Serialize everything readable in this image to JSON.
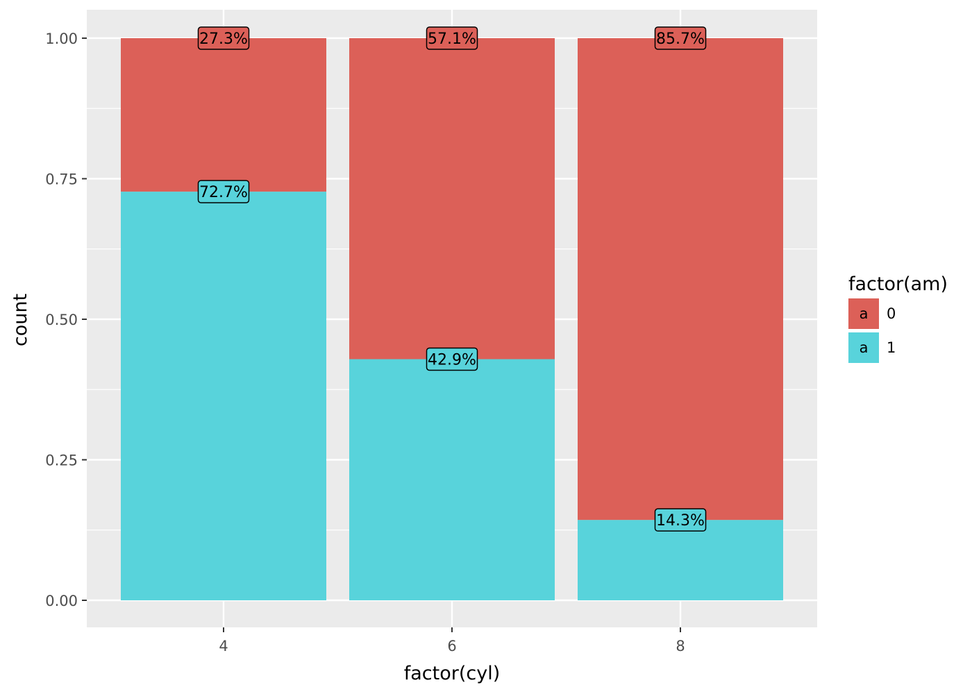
{
  "chart_data": {
    "type": "bar",
    "stacked": true,
    "position": "fill",
    "categories": [
      "4",
      "6",
      "8"
    ],
    "series": [
      {
        "name": "0",
        "values": [
          0.273,
          0.571,
          0.857
        ],
        "labels": [
          "27.3%",
          "57.1%",
          "85.7%"
        ],
        "color": "#F8766D"
      },
      {
        "name": "1",
        "values": [
          0.727,
          0.429,
          0.143
        ],
        "labels": [
          "72.7%",
          "42.9%",
          "14.3%"
        ],
        "color": "#00BFC4"
      }
    ],
    "xlabel": "factor(cyl)",
    "ylabel": "count",
    "ylim": [
      -0.05,
      1.05
    ],
    "yticks": [
      "0.00",
      "0.25",
      "0.50",
      "0.75",
      "1.00"
    ],
    "ytick_values": [
      0,
      0.25,
      0.5,
      0.75,
      1.0
    ],
    "legend": {
      "title": "factor(am)",
      "placement": "right",
      "key_glyph": "a"
    },
    "grid": true,
    "panel_background": "#EBEBEB",
    "bar_colors": {
      "0": "#DC6058",
      "1": "#58D3DB"
    }
  }
}
